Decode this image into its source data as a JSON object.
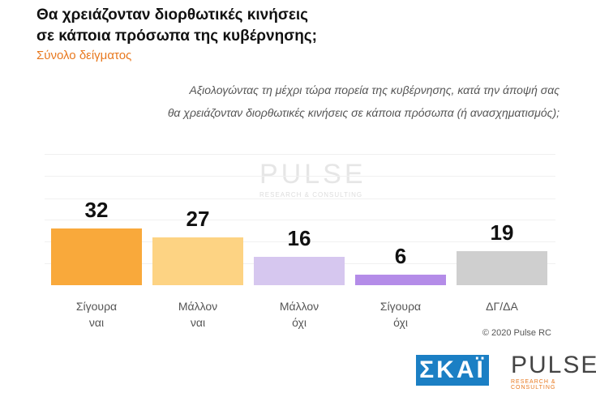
{
  "chart_data": {
    "type": "bar",
    "title": "Θα χρειάζονταν διορθωτικές κινήσεις\nσε κάποια πρόσωπα της κυβέρνησης;",
    "subtitle": "Σύνολο δείγματος",
    "question": "Αξιολογώντας τη μέχρι τώρα πορεία της κυβέρνησης, κατά την άποψή σας\nθα χρειάζονταν διορθωτικές κινήσεις σε κάποια πρόσωπα (ή ανασχηματισμός);",
    "categories": [
      "Σίγουρα\nναι",
      "Μάλλον\nναι",
      "Μάλλον\nόχι",
      "Σίγουρα\nόχι",
      "ΔΓ/ΔΑ"
    ],
    "values": [
      32,
      27,
      16,
      6,
      19
    ],
    "colors": [
      "#f9a93b",
      "#fdd383",
      "#d6c7ef",
      "#b48ce8",
      "#cfcfcf"
    ],
    "copyright": "© 2020 Pulse RC"
  },
  "logos": {
    "broadcaster": "ΣΚΑΪ",
    "pollster": "PULSE",
    "pollster_tagline": "RESEARCH & CONSULTING"
  }
}
